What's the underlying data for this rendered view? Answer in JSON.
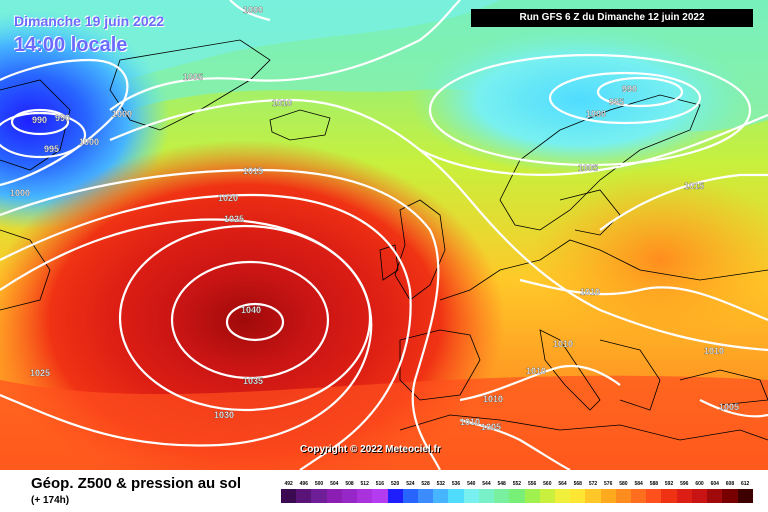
{
  "header": {
    "date_line": "Dimanche 19 juin 2022",
    "time_line": "14:00 locale",
    "run_label": "Run GFS 6 Z du Dimanche 12 juin 2022"
  },
  "copyright": "Copyright © 2022 Meteociel.fr",
  "legend": {
    "title": "Géop. Z500 & pression au sol",
    "subtitle": "(+ 174h)",
    "ticks": [
      "492",
      "496",
      "500",
      "504",
      "508",
      "512",
      "516",
      "520",
      "524",
      "528",
      "532",
      "536",
      "540",
      "544",
      "548",
      "552",
      "556",
      "560",
      "564",
      "568",
      "572",
      "576",
      "580",
      "584",
      "588",
      "592",
      "596",
      "600",
      "604",
      "608",
      "612"
    ],
    "colors": [
      "#3c0a50",
      "#5a1478",
      "#6e1e96",
      "#8c1eb4",
      "#9628c8",
      "#aa32dc",
      "#b43cf0",
      "#1e1eff",
      "#2864ff",
      "#3c8cff",
      "#46b4ff",
      "#50dcff",
      "#78f0f0",
      "#78f0c8",
      "#78f0a0",
      "#78f078",
      "#a0f050",
      "#c8f03c",
      "#f0f03c",
      "#ffe632",
      "#ffc828",
      "#ffaa1e",
      "#ff8c1e",
      "#ff6e1e",
      "#ff501e",
      "#f03214",
      "#dc1e14",
      "#c81414",
      "#a00a0a",
      "#780000",
      "#3c0000"
    ]
  },
  "isobars": [
    {
      "value": "1000",
      "id": "isobar-1000-north-atlantic"
    },
    {
      "value": "990",
      "id": "isobar-990-labrador-a"
    },
    {
      "value": "990",
      "id": "isobar-990-labrador-b"
    },
    {
      "value": "995",
      "id": "isobar-995-labrador"
    },
    {
      "value": "1000",
      "id": "isobar-1000-labrador"
    },
    {
      "value": "1000",
      "id": "isobar-1000-newfoundland"
    },
    {
      "value": "1000",
      "id": "isobar-1000-canada-east"
    },
    {
      "value": "1005",
      "id": "isobar-1005-greenland-south"
    },
    {
      "value": "1010",
      "id": "isobar-1010-iceland"
    },
    {
      "value": "1015",
      "id": "isobar-1015-atlantic-north"
    },
    {
      "value": "1020",
      "id": "isobar-1020-atlantic"
    },
    {
      "value": "1025",
      "id": "isobar-1025-atlantic-high"
    },
    {
      "value": "1040",
      "id": "isobar-1040-azores-high"
    },
    {
      "value": "1035",
      "id": "isobar-1035-azores-south"
    },
    {
      "value": "1030",
      "id": "isobar-1030-azores-south"
    },
    {
      "value": "1025",
      "id": "isobar-1025-west"
    },
    {
      "value": "990",
      "id": "isobar-990-scandinavia"
    },
    {
      "value": "995",
      "id": "isobar-995-scandinavia"
    },
    {
      "value": "1000",
      "id": "isobar-1000-scandinavia"
    },
    {
      "value": "1005",
      "id": "isobar-1005-baltic"
    },
    {
      "value": "1015",
      "id": "isobar-1015-russia"
    },
    {
      "value": "1010",
      "id": "isobar-1010-central-europe"
    },
    {
      "value": "1010",
      "id": "isobar-1010-italy"
    },
    {
      "value": "1010",
      "id": "isobar-1010-ukraine"
    },
    {
      "value": "1010",
      "id": "isobar-1010-sardinia"
    },
    {
      "value": "1010",
      "id": "isobar-1010-algeria"
    },
    {
      "value": "1010",
      "id": "isobar-1010-sahara"
    },
    {
      "value": "1005",
      "id": "isobar-1005-sahara"
    },
    {
      "value": "1005",
      "id": "isobar-1005-turkey"
    }
  ]
}
